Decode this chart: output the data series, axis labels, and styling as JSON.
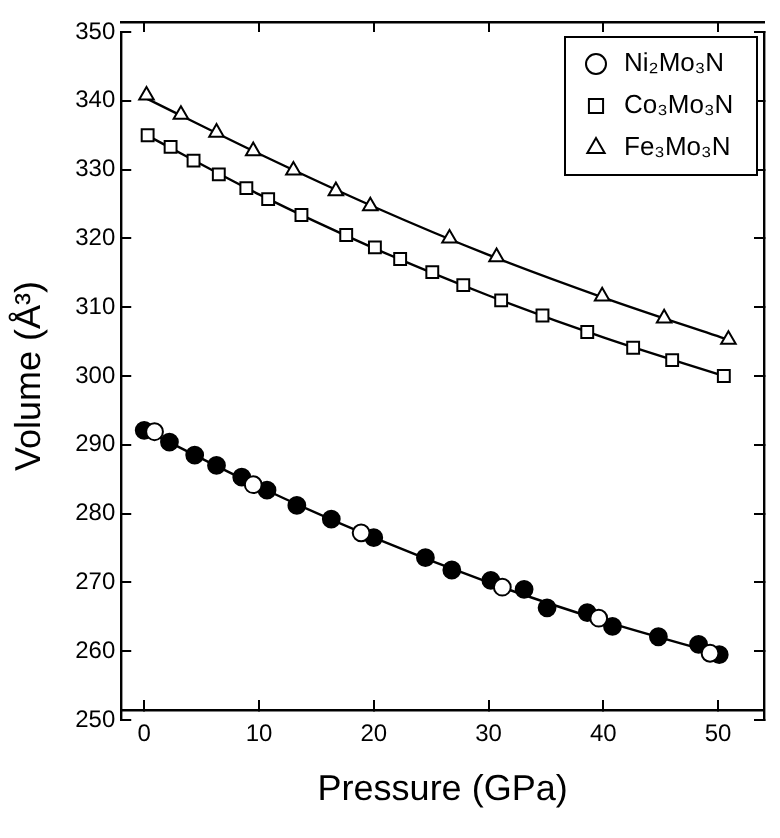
{
  "chart_data": {
    "type": "scatter",
    "xlabel": "Pressure (GPa)",
    "ylabel": "Volume (Å³)",
    "xlim": [
      -2,
      54
    ],
    "ylim": [
      250,
      350
    ],
    "xticks": [
      0,
      10,
      20,
      30,
      40,
      50
    ],
    "yticks": [
      250,
      260,
      270,
      280,
      290,
      300,
      310,
      320,
      330,
      340,
      350
    ],
    "legend": "top right",
    "grid": false,
    "series": [
      {
        "name": "Ni₂Mo₃N",
        "color": "#ffffff",
        "marker": "circle",
        "x": [
          0.9,
          9.5,
          18.9,
          31.2,
          39.6,
          49.3
        ],
        "values": [
          291.9,
          284.2,
          277.2,
          269.3,
          264.8,
          259.7
        ]
      },
      {
        "name": "Co₃Mo₃N",
        "color": "#ffffff",
        "marker": "square",
        "x": [
          0.3,
          2.3,
          4.3,
          6.5,
          8.9,
          10.8,
          13.7,
          17.6,
          20.1,
          22.3,
          25.1,
          27.8,
          31.1,
          34.7,
          38.6,
          42.6,
          46.0,
          50.5
        ],
        "values": [
          335.0,
          333.3,
          331.3,
          329.3,
          327.3,
          325.7,
          323.4,
          320.5,
          318.7,
          317.0,
          315.1,
          313.2,
          311.0,
          308.8,
          306.4,
          304.1,
          302.3,
          300.0
        ]
      },
      {
        "name": "Fe₃Mo₃N",
        "color": "#ffffff",
        "marker": "triangle",
        "x": [
          0.2,
          3.2,
          6.3,
          9.5,
          13.0,
          16.7,
          19.7,
          26.6,
          30.7,
          39.9,
          45.3,
          50.9
        ],
        "values": [
          340.8,
          338.0,
          335.4,
          332.7,
          329.9,
          326.9,
          324.7,
          320.0,
          317.3,
          311.6,
          308.4,
          305.3
        ]
      },
      {
        "color": "#000000",
        "marker": "circle",
        "x": [
          0,
          2.2,
          4.4,
          6.3,
          8.5,
          10.7,
          13.3,
          16.3,
          20.0,
          24.5,
          26.8,
          30.2,
          33.1,
          35.1,
          38.6,
          40.8,
          44.8,
          48.3,
          50.1
        ],
        "values": [
          292.1,
          290.4,
          288.5,
          287.0,
          285.3,
          283.4,
          281.2,
          279.2,
          276.5,
          273.6,
          271.8,
          270.3,
          269.0,
          266.3,
          265.6,
          263.6,
          262.1,
          261.0,
          259.5
        ]
      },
      {
        "type": "line",
        "color": "#000000",
        "marker": "none",
        "x": [
          0,
          10,
          20,
          30,
          40,
          50
        ],
        "values": [
          292.2,
          283.9,
          276.5,
          270.0,
          264.4,
          259.6
        ]
      },
      {
        "type": "line",
        "color": "#000000",
        "marker": "none",
        "x": [
          0,
          10,
          20,
          30,
          40,
          50.5
        ],
        "values": [
          335.2,
          326.4,
          318.6,
          311.7,
          305.6,
          300.0
        ]
      },
      {
        "type": "line",
        "color": "#000000",
        "marker": "none",
        "x": [
          0,
          10,
          20,
          30,
          40,
          51
        ],
        "values": [
          340.5,
          332.3,
          324.6,
          317.6,
          311.4,
          305.2
        ]
      }
    ]
  }
}
